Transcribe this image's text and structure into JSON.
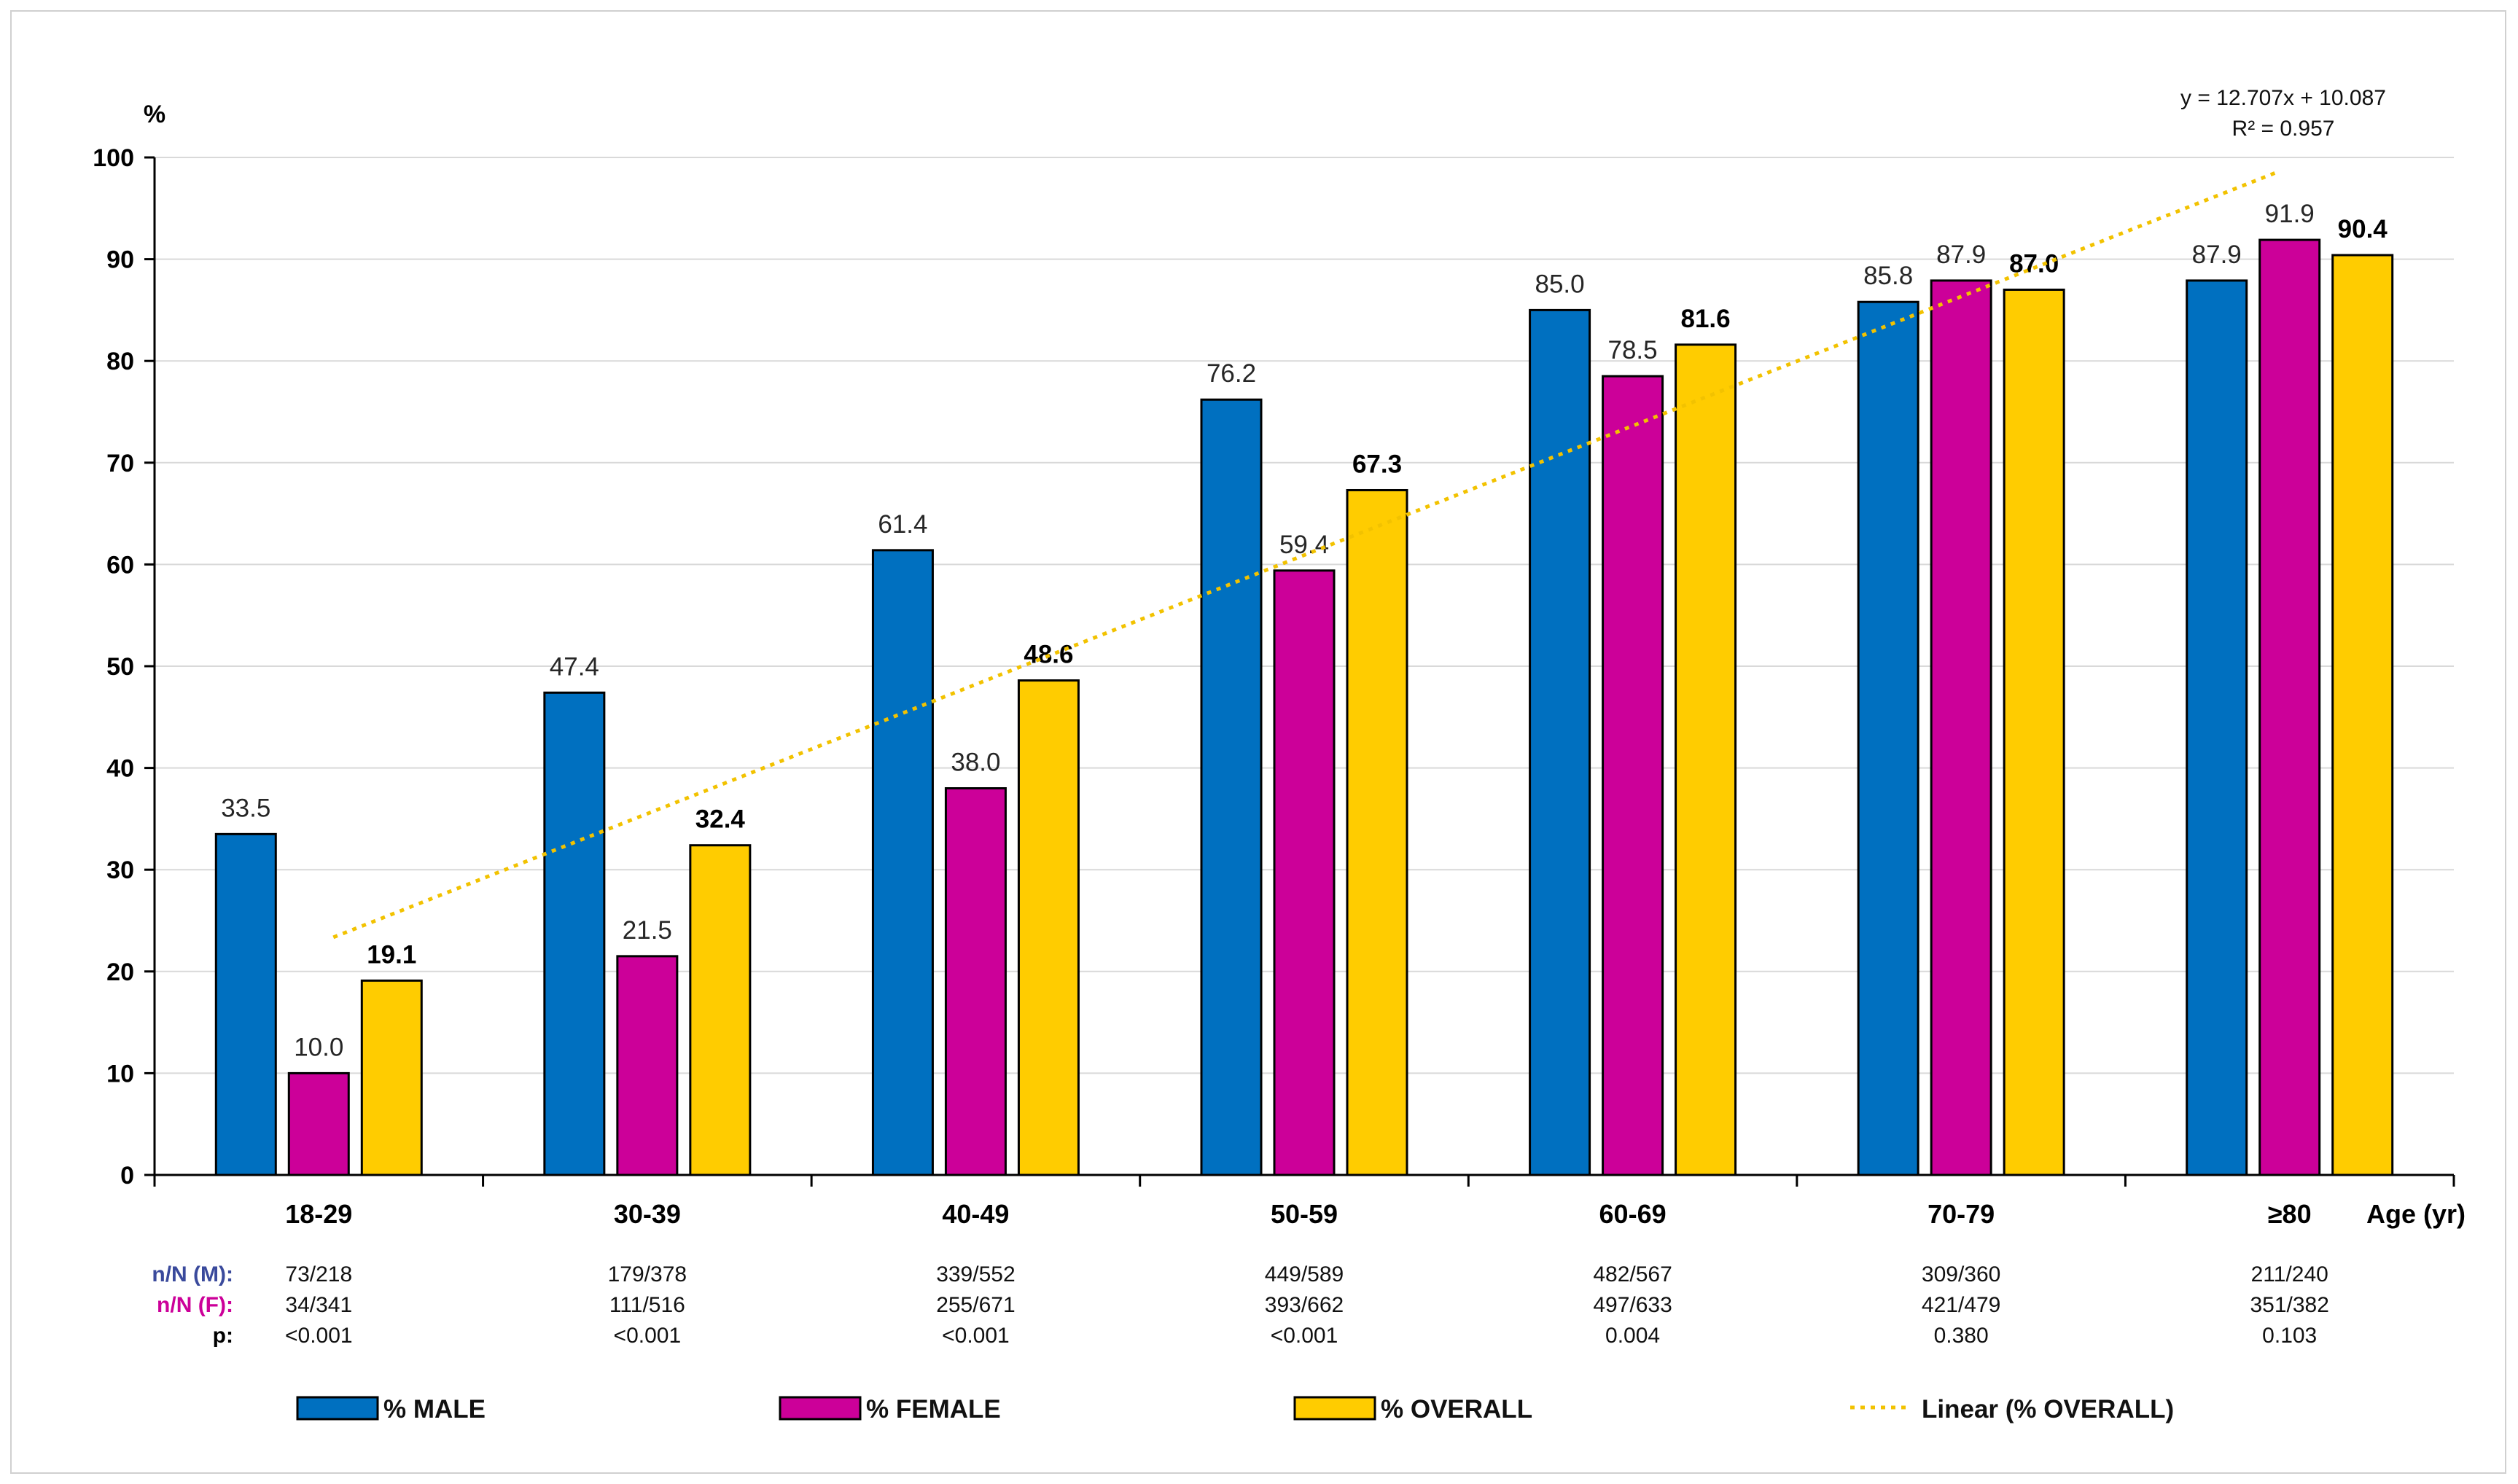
{
  "chart_data": {
    "type": "bar",
    "ylabel": "%",
    "xlabel": "Age (yr)",
    "ylim": [
      0,
      100
    ],
    "yticks": [
      "0",
      "10",
      "20",
      "30",
      "40",
      "50",
      "60",
      "70",
      "80",
      "90",
      "100"
    ],
    "grid": true,
    "categories": [
      "18-29",
      "30-39",
      "40-49",
      "50-59",
      "60-69",
      "70-79",
      "≥80"
    ],
    "series": [
      {
        "name": "% MALE",
        "color": "#0070C0",
        "labels_bold": false,
        "values": [
          33.5,
          47.4,
          61.4,
          76.2,
          85.0,
          85.8,
          87.9
        ],
        "labels": [
          "33.5",
          "47.4",
          "61.4",
          "76.2",
          "85.0",
          "85.8",
          "87.9"
        ]
      },
      {
        "name": "% FEMALE",
        "color": "#CC0099",
        "labels_bold": false,
        "values": [
          10.0,
          21.5,
          38.0,
          59.4,
          78.5,
          87.9,
          91.9
        ],
        "labels": [
          "10.0",
          "21.5",
          "38.0",
          "59.4",
          "78.5",
          "87.9",
          "91.9"
        ]
      },
      {
        "name": "% OVERALL",
        "color": "#FFCC00",
        "labels_bold": true,
        "values": [
          19.1,
          32.4,
          48.6,
          67.3,
          81.6,
          87.0,
          90.4
        ],
        "labels": [
          "19.1",
          "32.4",
          "48.6",
          "67.3",
          "81.6",
          "87.0",
          "90.4"
        ]
      }
    ],
    "trendline": {
      "name": "Linear  (% OVERALL)",
      "slope": 12.707,
      "intercept": 10.087,
      "color": "#F2C200",
      "equation": "y = 12.707x + 10.087",
      "r_squared": "R² = 0.957"
    },
    "legend_position": "bottom",
    "table": {
      "rows": [
        {
          "label": "n/N (M):",
          "color": "#3A4A9C",
          "values": [
            "73/218",
            "179/378",
            "339/552",
            "449/589",
            "482/567",
            "309/360",
            "211/240"
          ]
        },
        {
          "label": "n/N (F):",
          "color": "#CC0099",
          "values": [
            "34/341",
            "111/516",
            "255/671",
            "393/662",
            "497/633",
            "421/479",
            "351/382"
          ]
        },
        {
          "label": "p:",
          "color": "#000000",
          "values": [
            "<0.001",
            "<0.001",
            "<0.001",
            "<0.001",
            "0.004",
            "0.380",
            "0.103"
          ]
        }
      ]
    }
  }
}
